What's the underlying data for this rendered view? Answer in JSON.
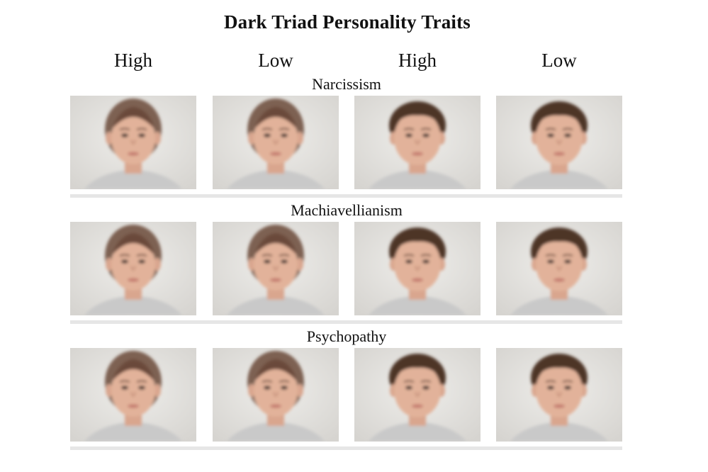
{
  "title": "Dark Triad Personality Traits",
  "columns": [
    "High",
    "Low",
    "High",
    "Low"
  ],
  "rows": [
    {
      "label": "Narcissism"
    },
    {
      "label": "Machiavellianism"
    },
    {
      "label": "Psychopathy"
    }
  ],
  "colors": {
    "background": "#e7e6e3",
    "skin": "#e2b29a",
    "hair_female": "#6b4a3a",
    "hair_male": "#4e3426",
    "shirt": "#c9c9c9",
    "divider": "#e6e6e6"
  }
}
